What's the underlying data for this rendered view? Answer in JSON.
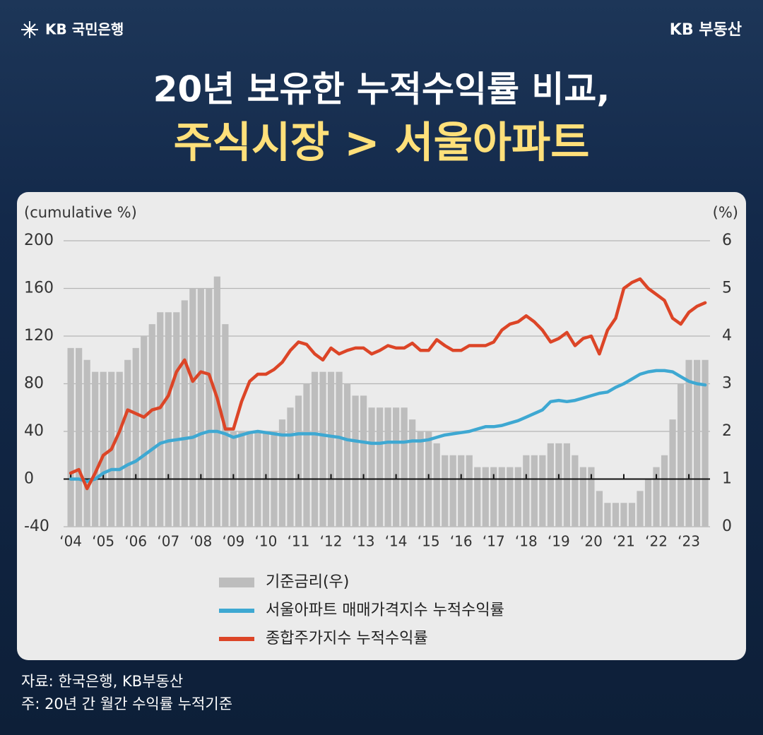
{
  "header": {
    "logo": "KB 국민은행",
    "brand": "KB 부동산"
  },
  "chart_data": {
    "type": "line",
    "title": "20년 보유한 누적수익률 비교,",
    "subtitle": "주식시장 > 서울아파트",
    "ylabel": "(cumulative %)",
    "y2label": "(%)",
    "xlim": [
      2003.78,
      2023.65
    ],
    "xticks": [
      {
        "value": 2004,
        "label": "‘04"
      },
      {
        "value": 2005,
        "label": "‘05"
      },
      {
        "value": 2006,
        "label": "‘06"
      },
      {
        "value": 2007,
        "label": "‘07"
      },
      {
        "value": 2008,
        "label": "‘08"
      },
      {
        "value": 2009,
        "label": "‘09"
      },
      {
        "value": 2010,
        "label": "‘10"
      },
      {
        "value": 2011,
        "label": "‘11"
      },
      {
        "value": 2012,
        "label": "‘12"
      },
      {
        "value": 2013,
        "label": "‘13"
      },
      {
        "value": 2014,
        "label": "‘14"
      },
      {
        "value": 2015,
        "label": "‘15"
      },
      {
        "value": 2016,
        "label": "‘16"
      },
      {
        "value": 2017,
        "label": "‘17"
      },
      {
        "value": 2018,
        "label": "‘18"
      },
      {
        "value": 2019,
        "label": "‘19"
      },
      {
        "value": 2020,
        "label": "‘20"
      },
      {
        "value": 2021,
        "label": "‘21"
      },
      {
        "value": 2022,
        "label": "‘22"
      },
      {
        "value": 2023,
        "label": "‘23"
      }
    ],
    "ylim": [
      -40,
      200
    ],
    "yticks": [
      -40,
      0,
      40,
      80,
      120,
      160,
      200
    ],
    "y2lim": [
      0,
      6
    ],
    "y2ticks": [
      0,
      1,
      2,
      3,
      4,
      5,
      6
    ],
    "grid": true,
    "x": [
      2004,
      2004.25,
      2004.5,
      2004.75,
      2005,
      2005.25,
      2005.5,
      2005.75,
      2006,
      2006.25,
      2006.5,
      2006.75,
      2007,
      2007.25,
      2007.5,
      2007.75,
      2008,
      2008.25,
      2008.5,
      2008.75,
      2009,
      2009.25,
      2009.5,
      2009.75,
      2010,
      2010.25,
      2010.5,
      2010.75,
      2011,
      2011.25,
      2011.5,
      2011.75,
      2012,
      2012.25,
      2012.5,
      2012.75,
      2013,
      2013.25,
      2013.5,
      2013.75,
      2014,
      2014.25,
      2014.5,
      2014.75,
      2015,
      2015.25,
      2015.5,
      2015.75,
      2016,
      2016.25,
      2016.5,
      2016.75,
      2017,
      2017.25,
      2017.5,
      2017.75,
      2018,
      2018.25,
      2018.5,
      2018.75,
      2019,
      2019.25,
      2019.5,
      2019.75,
      2020,
      2020.25,
      2020.5,
      2020.75,
      2021,
      2021.25,
      2021.5,
      2021.75,
      2022,
      2022.25,
      2022.5,
      2022.75,
      2023,
      2023.25,
      2023.5
    ],
    "series": [
      {
        "name": "기준금리(우)",
        "type": "bar",
        "axis": "y2",
        "color": "#bdbdbd",
        "values": [
          3.75,
          3.75,
          3.5,
          3.25,
          3.25,
          3.25,
          3.25,
          3.5,
          3.75,
          4.0,
          4.25,
          4.5,
          4.5,
          4.5,
          4.75,
          5.0,
          5.0,
          5.0,
          5.25,
          4.25,
          2.0,
          2.0,
          2.0,
          2.0,
          2.0,
          2.0,
          2.25,
          2.5,
          2.75,
          3.0,
          3.25,
          3.25,
          3.25,
          3.25,
          3.0,
          2.75,
          2.75,
          2.5,
          2.5,
          2.5,
          2.5,
          2.5,
          2.25,
          2.0,
          2.0,
          1.75,
          1.5,
          1.5,
          1.5,
          1.5,
          1.25,
          1.25,
          1.25,
          1.25,
          1.25,
          1.25,
          1.5,
          1.5,
          1.5,
          1.75,
          1.75,
          1.75,
          1.5,
          1.25,
          1.25,
          0.75,
          0.5,
          0.5,
          0.5,
          0.5,
          0.75,
          1.0,
          1.25,
          1.5,
          2.25,
          3.0,
          3.5,
          3.5,
          3.5
        ]
      },
      {
        "name": "서울아파트 매매가격지수 누적수익률",
        "type": "line",
        "color": "#3ea8d2",
        "values": [
          0,
          0,
          -2,
          0,
          5,
          8,
          8,
          12,
          15,
          20,
          25,
          30,
          32,
          33,
          34,
          35,
          38,
          40,
          40,
          38,
          35,
          37,
          39,
          40,
          39,
          38,
          37,
          37,
          38,
          38,
          38,
          37,
          36,
          35,
          33,
          32,
          31,
          30,
          30,
          31,
          31,
          31,
          32,
          32,
          33,
          35,
          37,
          38,
          39,
          40,
          42,
          44,
          44,
          45,
          47,
          49,
          52,
          55,
          58,
          65,
          66,
          65,
          66,
          68,
          70,
          72,
          73,
          77,
          80,
          84,
          88,
          90,
          91,
          91,
          90,
          86,
          82,
          80,
          79
        ]
      },
      {
        "name": "종합주가지수 누적수익률",
        "type": "line",
        "color": "#dc4527",
        "values": [
          5,
          8,
          -8,
          5,
          20,
          25,
          40,
          58,
          55,
          52,
          58,
          60,
          70,
          90,
          100,
          82,
          90,
          88,
          68,
          42,
          42,
          65,
          82,
          88,
          88,
          92,
          98,
          108,
          115,
          113,
          105,
          100,
          110,
          105,
          108,
          110,
          110,
          105,
          108,
          112,
          110,
          110,
          114,
          108,
          108,
          117,
          112,
          108,
          108,
          112,
          112,
          112,
          115,
          125,
          130,
          132,
          137,
          132,
          125,
          115,
          118,
          123,
          112,
          118,
          120,
          105,
          125,
          135,
          160,
          165,
          168,
          160,
          155,
          150,
          135,
          130,
          140,
          145,
          148
        ]
      }
    ]
  },
  "footnotes": [
    "자료: 한국은행, KB부동산",
    "주: 20년 간 월간 수익률 누적기준"
  ]
}
